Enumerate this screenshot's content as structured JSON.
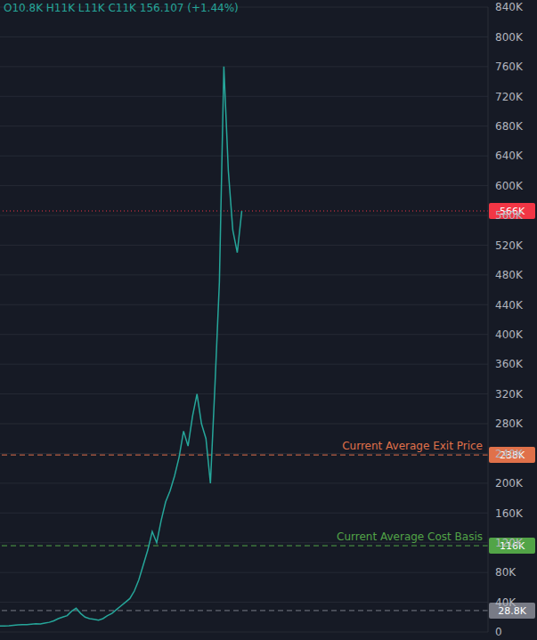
{
  "chart_data": {
    "type": "line",
    "title": "O10.8K H11K L11K C11K 156.107 (+1.44%)",
    "categories": [
      null,
      null,
      null,
      null,
      null,
      null,
      null,
      null,
      null,
      null,
      null,
      null,
      null,
      null,
      null,
      null,
      null,
      null,
      null,
      null,
      null,
      null,
      null,
      null,
      null,
      null,
      null,
      null,
      null,
      null,
      null,
      null,
      null,
      null,
      null,
      null,
      null,
      null,
      null,
      null,
      null,
      null,
      null,
      null,
      null,
      null,
      null,
      null,
      null,
      null,
      null,
      null,
      null,
      null,
      null,
      null,
      null,
      null,
      null,
      null,
      null,
      null,
      null,
      null,
      null,
      null,
      null,
      null,
      null,
      null,
      null,
      null,
      null,
      null,
      null,
      null,
      null,
      null,
      null,
      null,
      null,
      null,
      null,
      null,
      null,
      null,
      null,
      null,
      null,
      null,
      null,
      null,
      null,
      null,
      null,
      null,
      null,
      null,
      null,
      null,
      null,
      null,
      null,
      null,
      null,
      null,
      null,
      null,
      null,
      null
    ],
    "values": [
      8000,
      8200,
      8500,
      9000,
      9500,
      10000,
      9800,
      10500,
      11000,
      10800,
      12000,
      13000,
      15000,
      18000,
      20000,
      22000,
      28000,
      32000,
      25000,
      20000,
      18000,
      17000,
      16000,
      18000,
      22000,
      25000,
      30000,
      35000,
      40000,
      45000,
      55000,
      70000,
      90000,
      110000,
      135000,
      120000,
      150000,
      175000,
      190000,
      210000,
      235000,
      270000,
      250000,
      290000,
      320000,
      280000,
      260000,
      200000,
      330000,
      470000,
      760000,
      620000,
      540000,
      510000,
      566000,
      null,
      null,
      null,
      null,
      null,
      null,
      null,
      null,
      null,
      null,
      null,
      null,
      null,
      null,
      null,
      null,
      null,
      null,
      null,
      null,
      null,
      null,
      null,
      null,
      null,
      null,
      null,
      null,
      null,
      null,
      null,
      null,
      null,
      null,
      null,
      null,
      null,
      null,
      null,
      null,
      null,
      null,
      null,
      null,
      null,
      null,
      null,
      null,
      null,
      null,
      null,
      null,
      null,
      null,
      null
    ],
    "color": "#26a69a",
    "ylim": [
      0,
      840000
    ],
    "yticks": [
      0,
      {
        "value": 40000,
        "label": "40K"
      },
      {
        "value": 80000,
        "label": "80K"
      },
      {
        "value": 120000,
        "label": "120K"
      },
      {
        "value": 160000,
        "label": "160K"
      },
      {
        "value": 200000,
        "label": "200K"
      },
      {
        "value": 240000,
        "label": "240K"
      },
      {
        "value": 280000,
        "label": "280K"
      },
      {
        "value": 320000,
        "label": "320K"
      },
      {
        "value": 360000,
        "label": "360K"
      },
      {
        "value": 400000,
        "label": "400K"
      },
      {
        "value": 440000,
        "label": "440K"
      },
      {
        "value": 480000,
        "label": "480K"
      },
      {
        "value": 520000,
        "label": "520K"
      },
      {
        "value": 560000,
        "label": "560K"
      },
      {
        "value": 600000,
        "label": "600K"
      },
      {
        "value": 640000,
        "label": "640K"
      },
      {
        "value": 680000,
        "label": "680K"
      },
      {
        "value": 720000,
        "label": "720K"
      },
      {
        "value": 760000,
        "label": "760K"
      },
      {
        "value": 800000,
        "label": "800K"
      },
      {
        "value": 840000,
        "label": "840K"
      }
    ],
    "grid": true,
    "tick_labels": "y",
    "annotations": [
      {
        "value": 566000,
        "tag": "566K",
        "color": "#f23645",
        "line_style": "dotted"
      },
      {
        "value": 238000,
        "label": "Current Average Exit Price",
        "tag": "238K",
        "color": "#e0714a",
        "line_style": "dashed"
      },
      {
        "value": 116000,
        "label": "Current Average Cost Basis",
        "tag": "116K",
        "color": "#52a447",
        "line_style": "dashed"
      },
      {
        "value": 28800,
        "tag": "28.8K",
        "color": "#787b86",
        "line_style": "dashed"
      }
    ]
  }
}
